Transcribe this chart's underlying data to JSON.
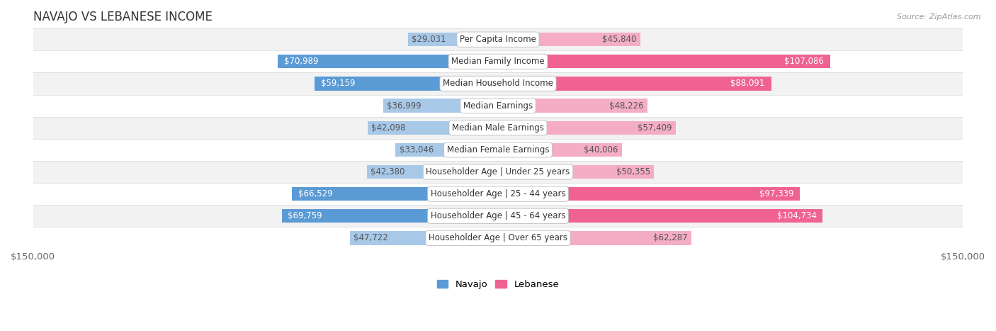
{
  "title": "NAVAJO VS LEBANESE INCOME",
  "source": "Source: ZipAtlas.com",
  "categories": [
    "Per Capita Income",
    "Median Family Income",
    "Median Household Income",
    "Median Earnings",
    "Median Male Earnings",
    "Median Female Earnings",
    "Householder Age | Under 25 years",
    "Householder Age | 25 - 44 years",
    "Householder Age | 45 - 64 years",
    "Householder Age | Over 65 years"
  ],
  "navajo_values": [
    29031,
    70989,
    59159,
    36999,
    42098,
    33046,
    42380,
    66529,
    69759,
    47722
  ],
  "lebanese_values": [
    45840,
    107086,
    88091,
    48226,
    57409,
    40006,
    50355,
    97339,
    104734,
    62287
  ],
  "navajo_color_light": "#a8c8e8",
  "navajo_color_dark": "#5b9bd5",
  "lebanese_color_light": "#f4adc4",
  "lebanese_color_dark": "#f06292",
  "xlim": 150000,
  "bar_height": 0.62,
  "row_bg_even": "#f2f2f2",
  "row_bg_odd": "#ffffff",
  "row_border": "#d8d8d8",
  "navajo_label": "Navajo",
  "lebanese_label": "Lebanese",
  "large_navajo_threshold": 55000,
  "large_lebanese_threshold": 80000,
  "label_fontsize": 8.5,
  "tick_fontsize": 9.5
}
